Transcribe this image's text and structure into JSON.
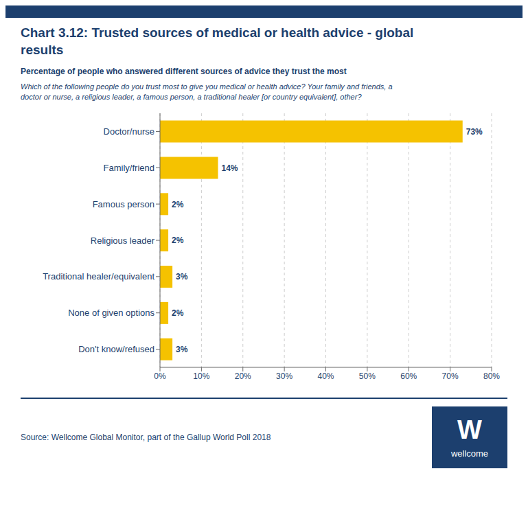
{
  "chart_data": {
    "type": "bar",
    "title": "Chart 3.12: Trusted sources of medical or health advice - global\nresults",
    "subtitle": "Percentage of people who answered different sources of advice they trust the most",
    "annotations": [
      "Which of the following people do you trust most to give you medical or health advice? Your family and friends, a\ndoctor or nurse, a religious leader, a famous person, a traditional healer [or country equivalent], other?",
      "Source: Wellcome Global Monitor, part of the Gallup World Poll 2018",
      "W",
      "wellcome"
    ],
    "categories": [
      "Doctor/nurse",
      "Family/friend",
      "Famous person",
      "Religious leader",
      "Traditional healer/equivalent",
      "None of given options",
      "Don't know/refused"
    ],
    "values": [
      73,
      14,
      2,
      2,
      3,
      2,
      3
    ],
    "value_labels": [
      "73%",
      "14%",
      "2%",
      "2%",
      "3%",
      "2%",
      "3%"
    ],
    "color": "#F5C200",
    "orientation": "horizontal",
    "data_labels": true,
    "grid": true,
    "xlim": [
      0,
      80
    ],
    "xticks": [
      {
        "value": 0,
        "label": "0%"
      },
      {
        "value": 10,
        "label": "10%"
      },
      {
        "value": 20,
        "label": "20%"
      },
      {
        "value": 30,
        "label": "30%"
      },
      {
        "value": 40,
        "label": "40%"
      },
      {
        "value": 50,
        "label": "50%"
      },
      {
        "value": 60,
        "label": "60%"
      },
      {
        "value": 70,
        "label": "70%"
      },
      {
        "value": 80,
        "label": "80%"
      }
    ]
  }
}
